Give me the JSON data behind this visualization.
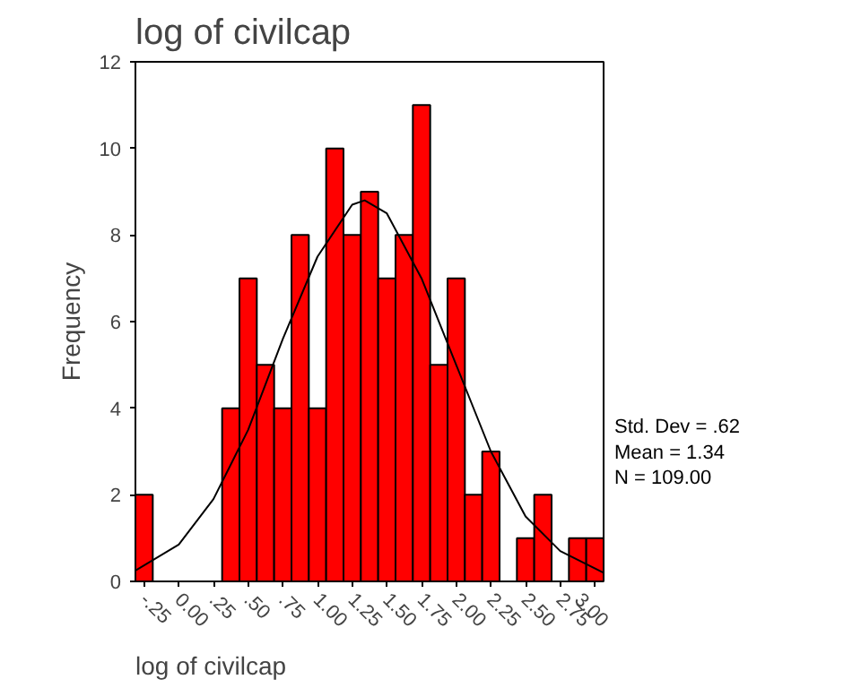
{
  "chart_data": {
    "type": "histogram",
    "title": "log of civilcap",
    "xlabel": "log of civilcap",
    "ylabel": "Frequency",
    "series": [
      {
        "color": "#ff0000",
        "bins": [
          -0.3125,
          -0.1875,
          -0.0625,
          0.0625,
          0.1875,
          0.3125,
          0.4375,
          0.5625,
          0.6875,
          0.8125,
          0.9375,
          1.0625,
          1.1875,
          1.3125,
          1.4375,
          1.5625,
          1.6875,
          1.8125,
          1.9375,
          2.0625,
          2.1875,
          2.3125,
          2.4375,
          2.5625,
          2.6875,
          2.8125,
          2.9375,
          3.0625
        ],
        "values": [
          2,
          0,
          0,
          0,
          0,
          4,
          7,
          5,
          4,
          8,
          4,
          10,
          8,
          9,
          7,
          8,
          11,
          5,
          7,
          2,
          3,
          0,
          1,
          2,
          0,
          1,
          1
        ]
      },
      {
        "type": "line",
        "color": "#000000",
        "x": [
          -0.3125,
          0,
          0.25,
          0.5,
          0.75,
          1,
          1.25,
          1.34,
          1.5,
          1.75,
          2,
          2.25,
          2.5,
          2.75,
          3.0625
        ],
        "values": [
          0.25,
          0.85,
          1.9,
          3.5,
          5.6,
          7.5,
          8.7,
          8.8,
          8.5,
          7.0,
          5.0,
          3.0,
          1.5,
          0.7,
          0.2
        ]
      }
    ],
    "xlim": [
      -0.3125,
      3.0625
    ],
    "ylim": [
      0,
      12
    ],
    "xticks": [
      {
        "value": -0.25,
        "label": "-.25"
      },
      {
        "value": 0,
        "label": "0.00"
      },
      {
        "value": 0.25,
        "label": ".25"
      },
      {
        "value": 0.5,
        "label": ".50"
      },
      {
        "value": 0.75,
        "label": ".75"
      },
      {
        "value": 1,
        "label": "1.00"
      },
      {
        "value": 1.25,
        "label": "1.25"
      },
      {
        "value": 1.5,
        "label": "1.50"
      },
      {
        "value": 1.75,
        "label": "1.75"
      },
      {
        "value": 2,
        "label": "2.00"
      },
      {
        "value": 2.25,
        "label": "2.25"
      },
      {
        "value": 2.5,
        "label": "2.50"
      },
      {
        "value": 2.75,
        "label": "2.75"
      },
      {
        "value": 3,
        "label": "3.00"
      }
    ],
    "yticks": [
      0,
      2,
      4,
      6,
      8,
      10,
      12
    ],
    "grid": false,
    "annotations": [
      "Std. Dev = .62",
      "Mean = 1.34",
      "N = 109.00"
    ]
  }
}
